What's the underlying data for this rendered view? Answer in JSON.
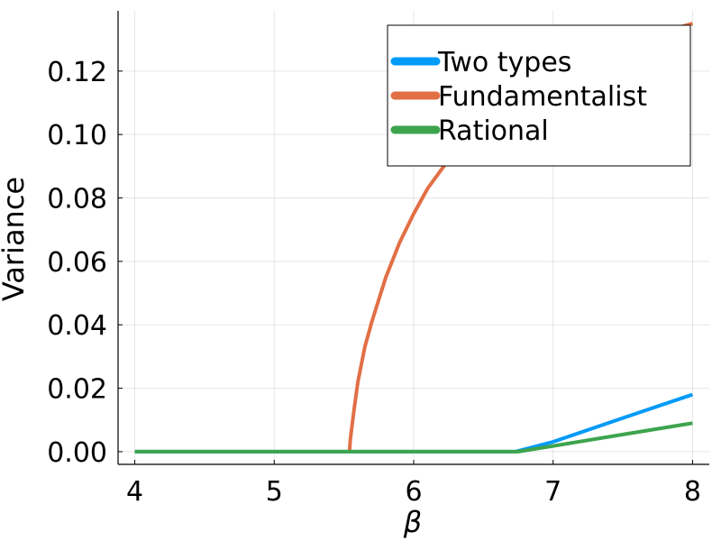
{
  "chart_data": {
    "type": "line",
    "title": "",
    "xlabel": "β",
    "ylabel": "Variance",
    "xlim": [
      3.88,
      8.12
    ],
    "ylim": [
      -0.004,
      0.139
    ],
    "xticks": [
      4,
      5,
      6,
      7,
      8
    ],
    "xtick_labels": [
      "4",
      "5",
      "6",
      "7",
      "8"
    ],
    "yticks": [
      0.0,
      0.02,
      0.04,
      0.06,
      0.08,
      0.1,
      0.12
    ],
    "ytick_labels": [
      "0.00",
      "0.02",
      "0.04",
      "0.06",
      "0.08",
      "0.10",
      "0.12"
    ],
    "grid": true,
    "legend_position": "top-right",
    "series": [
      {
        "name": "Two types",
        "color": "#009af9",
        "x": [
          4.0,
          5.0,
          6.0,
          6.73,
          7.0,
          7.5,
          8.0
        ],
        "y": [
          0.0,
          0.0,
          0.0,
          0.0,
          0.0031,
          0.0106,
          0.018
        ]
      },
      {
        "name": "Fundamentalist",
        "color": "#e26f46",
        "x": [
          5.54,
          5.545,
          5.55,
          5.575,
          5.6,
          5.65,
          5.7,
          5.8,
          5.9,
          6.0,
          6.1,
          6.2,
          6.3,
          6.45,
          6.6,
          6.8,
          7.0,
          7.3,
          7.6,
          8.0
        ],
        "y": [
          0.0,
          0.0035,
          0.0055,
          0.014,
          0.022,
          0.033,
          0.041,
          0.055,
          0.066,
          0.075,
          0.083,
          0.089,
          0.095,
          0.102,
          0.108,
          0.114,
          0.119,
          0.125,
          0.13,
          0.135
        ]
      },
      {
        "name": "Rational",
        "color": "#3da44d",
        "x": [
          4.0,
          5.0,
          6.0,
          6.75,
          7.0,
          7.5,
          8.0
        ],
        "y": [
          0.0,
          0.0,
          0.0,
          0.0,
          0.0018,
          0.0054,
          0.009
        ]
      }
    ]
  }
}
